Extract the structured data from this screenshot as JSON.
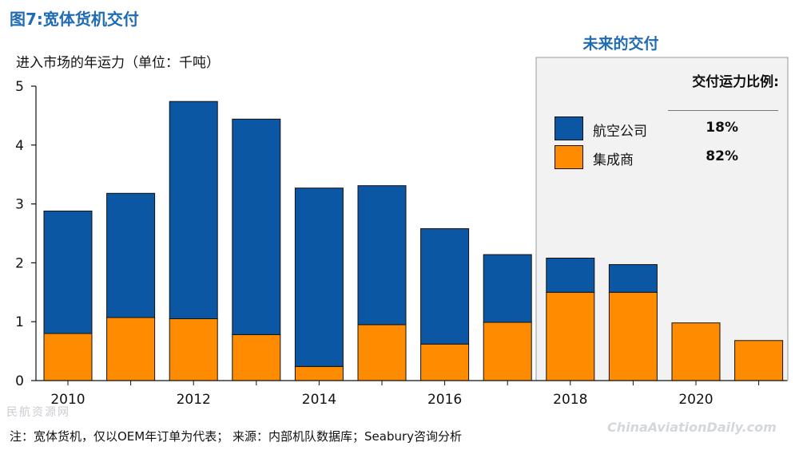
{
  "header": {
    "title": "图7:宽体货机交付",
    "subtitle": "进入市场的年运力（单位：千吨）",
    "future_label": "未来的交付"
  },
  "legend": {
    "title": "交付运力比例:",
    "items": [
      {
        "label": "航空公司",
        "pct": "18%",
        "color": "#0b57a4"
      },
      {
        "label": "集成商",
        "pct": "82%",
        "color": "#ff8c00"
      }
    ]
  },
  "footnote": "注：宽体货机，仅以OEM年订单为代表；  来源：内部机队数据库；Seabury咨询分析",
  "watermarks": {
    "left": "民航资源网",
    "right": "ChinaAviationDaily.com"
  },
  "chart_data": {
    "type": "bar",
    "stacked": true,
    "categories": [
      "2010",
      "2011",
      "2012",
      "2013",
      "2014",
      "2015",
      "2016",
      "2017",
      "2018",
      "2019",
      "2020",
      "2021"
    ],
    "x_tick_labels": [
      "2010",
      "",
      "2012",
      "",
      "2014",
      "",
      "2016",
      "",
      "2018",
      "",
      "2020",
      ""
    ],
    "ylim": [
      0,
      5
    ],
    "yticks": [
      0,
      1,
      2,
      3,
      4,
      5
    ],
    "series": [
      {
        "name": "集成商",
        "color": "#ff8c00",
        "values": [
          0.8,
          1.07,
          1.05,
          0.78,
          0.24,
          0.95,
          0.62,
          0.99,
          1.5,
          1.5,
          0.98,
          0.68
        ]
      },
      {
        "name": "航空公司",
        "color": "#0b57a4",
        "values": [
          2.08,
          2.11,
          3.69,
          3.66,
          3.03,
          2.36,
          1.96,
          1.15,
          0.58,
          0.47,
          0,
          0
        ]
      }
    ],
    "future_region": {
      "start": "2018",
      "end": "2021"
    }
  }
}
